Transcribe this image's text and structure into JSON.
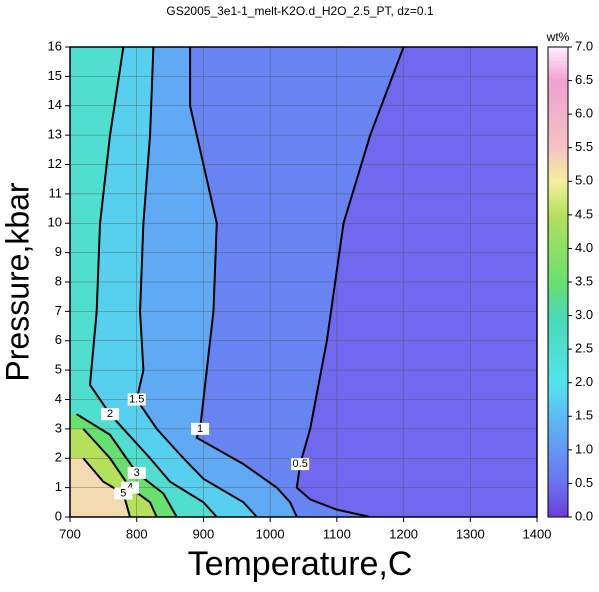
{
  "chart_data": {
    "type": "contour",
    "title": "GS2005_3e1-1_melt-K2O.d_H2O_2.5_PT, dz=0.1",
    "x_label": "Temperature,C",
    "y_label": "Pressure,kbar",
    "xlim": [
      700,
      1400
    ],
    "ylim": [
      0,
      16
    ],
    "xticks": [
      700,
      800,
      900,
      1000,
      1100,
      1200,
      1300,
      1400
    ],
    "yticks": [
      0,
      1,
      2,
      3,
      4,
      5,
      6,
      7,
      8,
      9,
      10,
      11,
      12,
      13,
      14,
      15,
      16
    ],
    "grid": true,
    "base_color": "#7068ee",
    "colormap": [
      {
        "value": 0,
        "color": "#6a3cd8"
      },
      {
        "value": 0.5,
        "color": "#6a72f0"
      },
      {
        "value": 1,
        "color": "#6496f4"
      },
      {
        "value": 1.5,
        "color": "#5cbcf4"
      },
      {
        "value": 2,
        "color": "#52e4ec"
      },
      {
        "value": 3,
        "color": "#4cd8b4"
      },
      {
        "value": 3.5,
        "color": "#68e070"
      },
      {
        "value": 4.5,
        "color": "#b4e05c"
      },
      {
        "value": 5,
        "color": "#f4f09c"
      },
      {
        "value": 5.5,
        "color": "#f4c4c4"
      },
      {
        "value": 6.5,
        "color": "#f0a0d0"
      },
      {
        "value": 7,
        "color": "#fff0ff"
      }
    ],
    "colorbar": {
      "label": "wt%",
      "lim": [
        0,
        7
      ],
      "ticks": [
        {
          "value": 0,
          "label": "0.0"
        },
        {
          "value": 0.5,
          "label": "0.5"
        },
        {
          "value": 1,
          "label": "1.0"
        },
        {
          "value": 1.5,
          "label": "1.5"
        },
        {
          "value": 2,
          "label": "2.0"
        },
        {
          "value": 2.5,
          "label": "2.5"
        },
        {
          "value": 3,
          "label": "3.0"
        },
        {
          "value": 3.5,
          "label": "3.5"
        },
        {
          "value": 4,
          "label": "4.0"
        },
        {
          "value": 4.5,
          "label": "4.5"
        },
        {
          "value": 5,
          "label": "5.0"
        },
        {
          "value": 5.5,
          "label": "5.5"
        },
        {
          "value": 6,
          "label": "6.0"
        },
        {
          "value": 6.5,
          "label": "6.5"
        },
        {
          "value": 7,
          "label": "7.0"
        }
      ]
    },
    "contours": [
      {
        "level": 0.5,
        "x": [
          1200,
          1150,
          1110,
          1085,
          1060,
          1045,
          1040,
          1060,
          1100,
          1150
        ],
        "y": [
          16,
          13,
          10,
          6,
          3,
          1.8,
          1,
          0.6,
          0.25,
          0
        ]
      },
      {
        "level": 1,
        "x": [
          880,
          880,
          900,
          920,
          915,
          905,
          895,
          890,
          960,
          1010,
          1030,
          1040
        ],
        "y": [
          16,
          14,
          12,
          10,
          7,
          5,
          3,
          2.7,
          1.8,
          1,
          0.5,
          0
        ]
      },
      {
        "level": 1.5,
        "x": [
          825,
          820,
          810,
          805,
          810,
          800,
          830,
          870,
          900,
          960,
          980
        ],
        "y": [
          16,
          13,
          10,
          7,
          5,
          4,
          3,
          2,
          1.3,
          0.5,
          0
        ]
      },
      {
        "level": 2,
        "x": [
          780,
          760,
          745,
          740,
          730,
          760,
          820,
          850,
          900,
          920
        ],
        "y": [
          16,
          13,
          10,
          7,
          4.5,
          3.5,
          2,
          1.2,
          0.5,
          0
        ]
      },
      {
        "level": 3,
        "x": [
          710,
          760,
          800,
          840,
          860
        ],
        "y": [
          3.5,
          2.8,
          1.5,
          0.8,
          0
        ]
      },
      {
        "level": 4,
        "x": [
          720,
          760,
          790,
          820,
          830
        ],
        "y": [
          3,
          2,
          1,
          0.5,
          0
        ]
      },
      {
        "level": 5,
        "x": [
          720,
          750,
          780,
          790
        ],
        "y": [
          2,
          1.2,
          0.8,
          0
        ]
      }
    ]
  }
}
